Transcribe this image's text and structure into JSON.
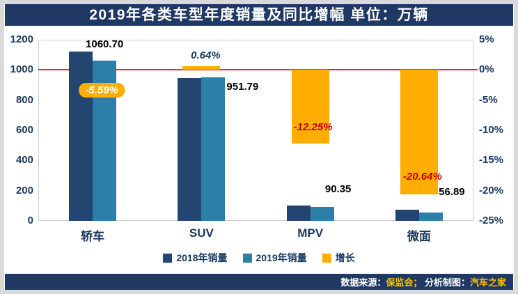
{
  "header": {
    "title": "2019年各类车型年度销量及同比增幅  单位：万辆"
  },
  "footer": {
    "parts": [
      {
        "text": "数据来源：",
        "color": "#ffffff"
      },
      {
        "text": "保监会；",
        "color": "#ffc000"
      },
      {
        "text": " 分析制图：",
        "color": "#ffffff"
      },
      {
        "text": "汽车之家",
        "color": "#ffc000"
      }
    ]
  },
  "legend": [
    {
      "label": "2018年销量",
      "color": "#23456f"
    },
    {
      "label": "2019年销量",
      "color": "#2c7fa8"
    },
    {
      "label": "增长",
      "color": "#ffae00"
    }
  ],
  "chart_data": {
    "type": "bar",
    "title": "2019年各类车型年度销量及同比增幅",
    "units": "万辆",
    "categories": [
      "轿车",
      "SUV",
      "MPV",
      "微面"
    ],
    "series": [
      {
        "name": "2018年销量",
        "axis": "left",
        "color": "#23456f",
        "values": [
          1123,
          946,
          103,
          72
        ]
      },
      {
        "name": "2019年销量",
        "axis": "left",
        "color": "#2c7fa8",
        "values": [
          1060.7,
          951.79,
          90.35,
          56.89
        ]
      },
      {
        "name": "增长",
        "axis": "right",
        "color": "#ffae00",
        "values": [
          -5.59,
          0.64,
          -12.25,
          -20.64
        ]
      }
    ],
    "value_labels": [
      "1060.70",
      "951.79",
      "90.35",
      "56.89"
    ],
    "growth_labels": [
      {
        "text": "-5.59%",
        "color": "#ffffff",
        "bg": "#ffae00"
      },
      {
        "text": "0.64%",
        "color": "#17375e",
        "bg": ""
      },
      {
        "text": "-12.25%",
        "color": "#c00000",
        "bg": ""
      },
      {
        "text": "-20.64%",
        "color": "#c00000",
        "bg": ""
      }
    ],
    "left_axis": {
      "min": 0,
      "max": 1200,
      "ticks": [
        1200,
        1000,
        800,
        600,
        400,
        200,
        0
      ]
    },
    "right_axis": {
      "min": -25,
      "max": 5,
      "ticks": [
        "5%",
        "0%",
        "-5%",
        "-10%",
        "-15%",
        "-20%",
        "-25%"
      ]
    },
    "zero_line": {
      "value": 0,
      "color": "#ff2222"
    },
    "legend_position": "bottom",
    "grid": false
  }
}
